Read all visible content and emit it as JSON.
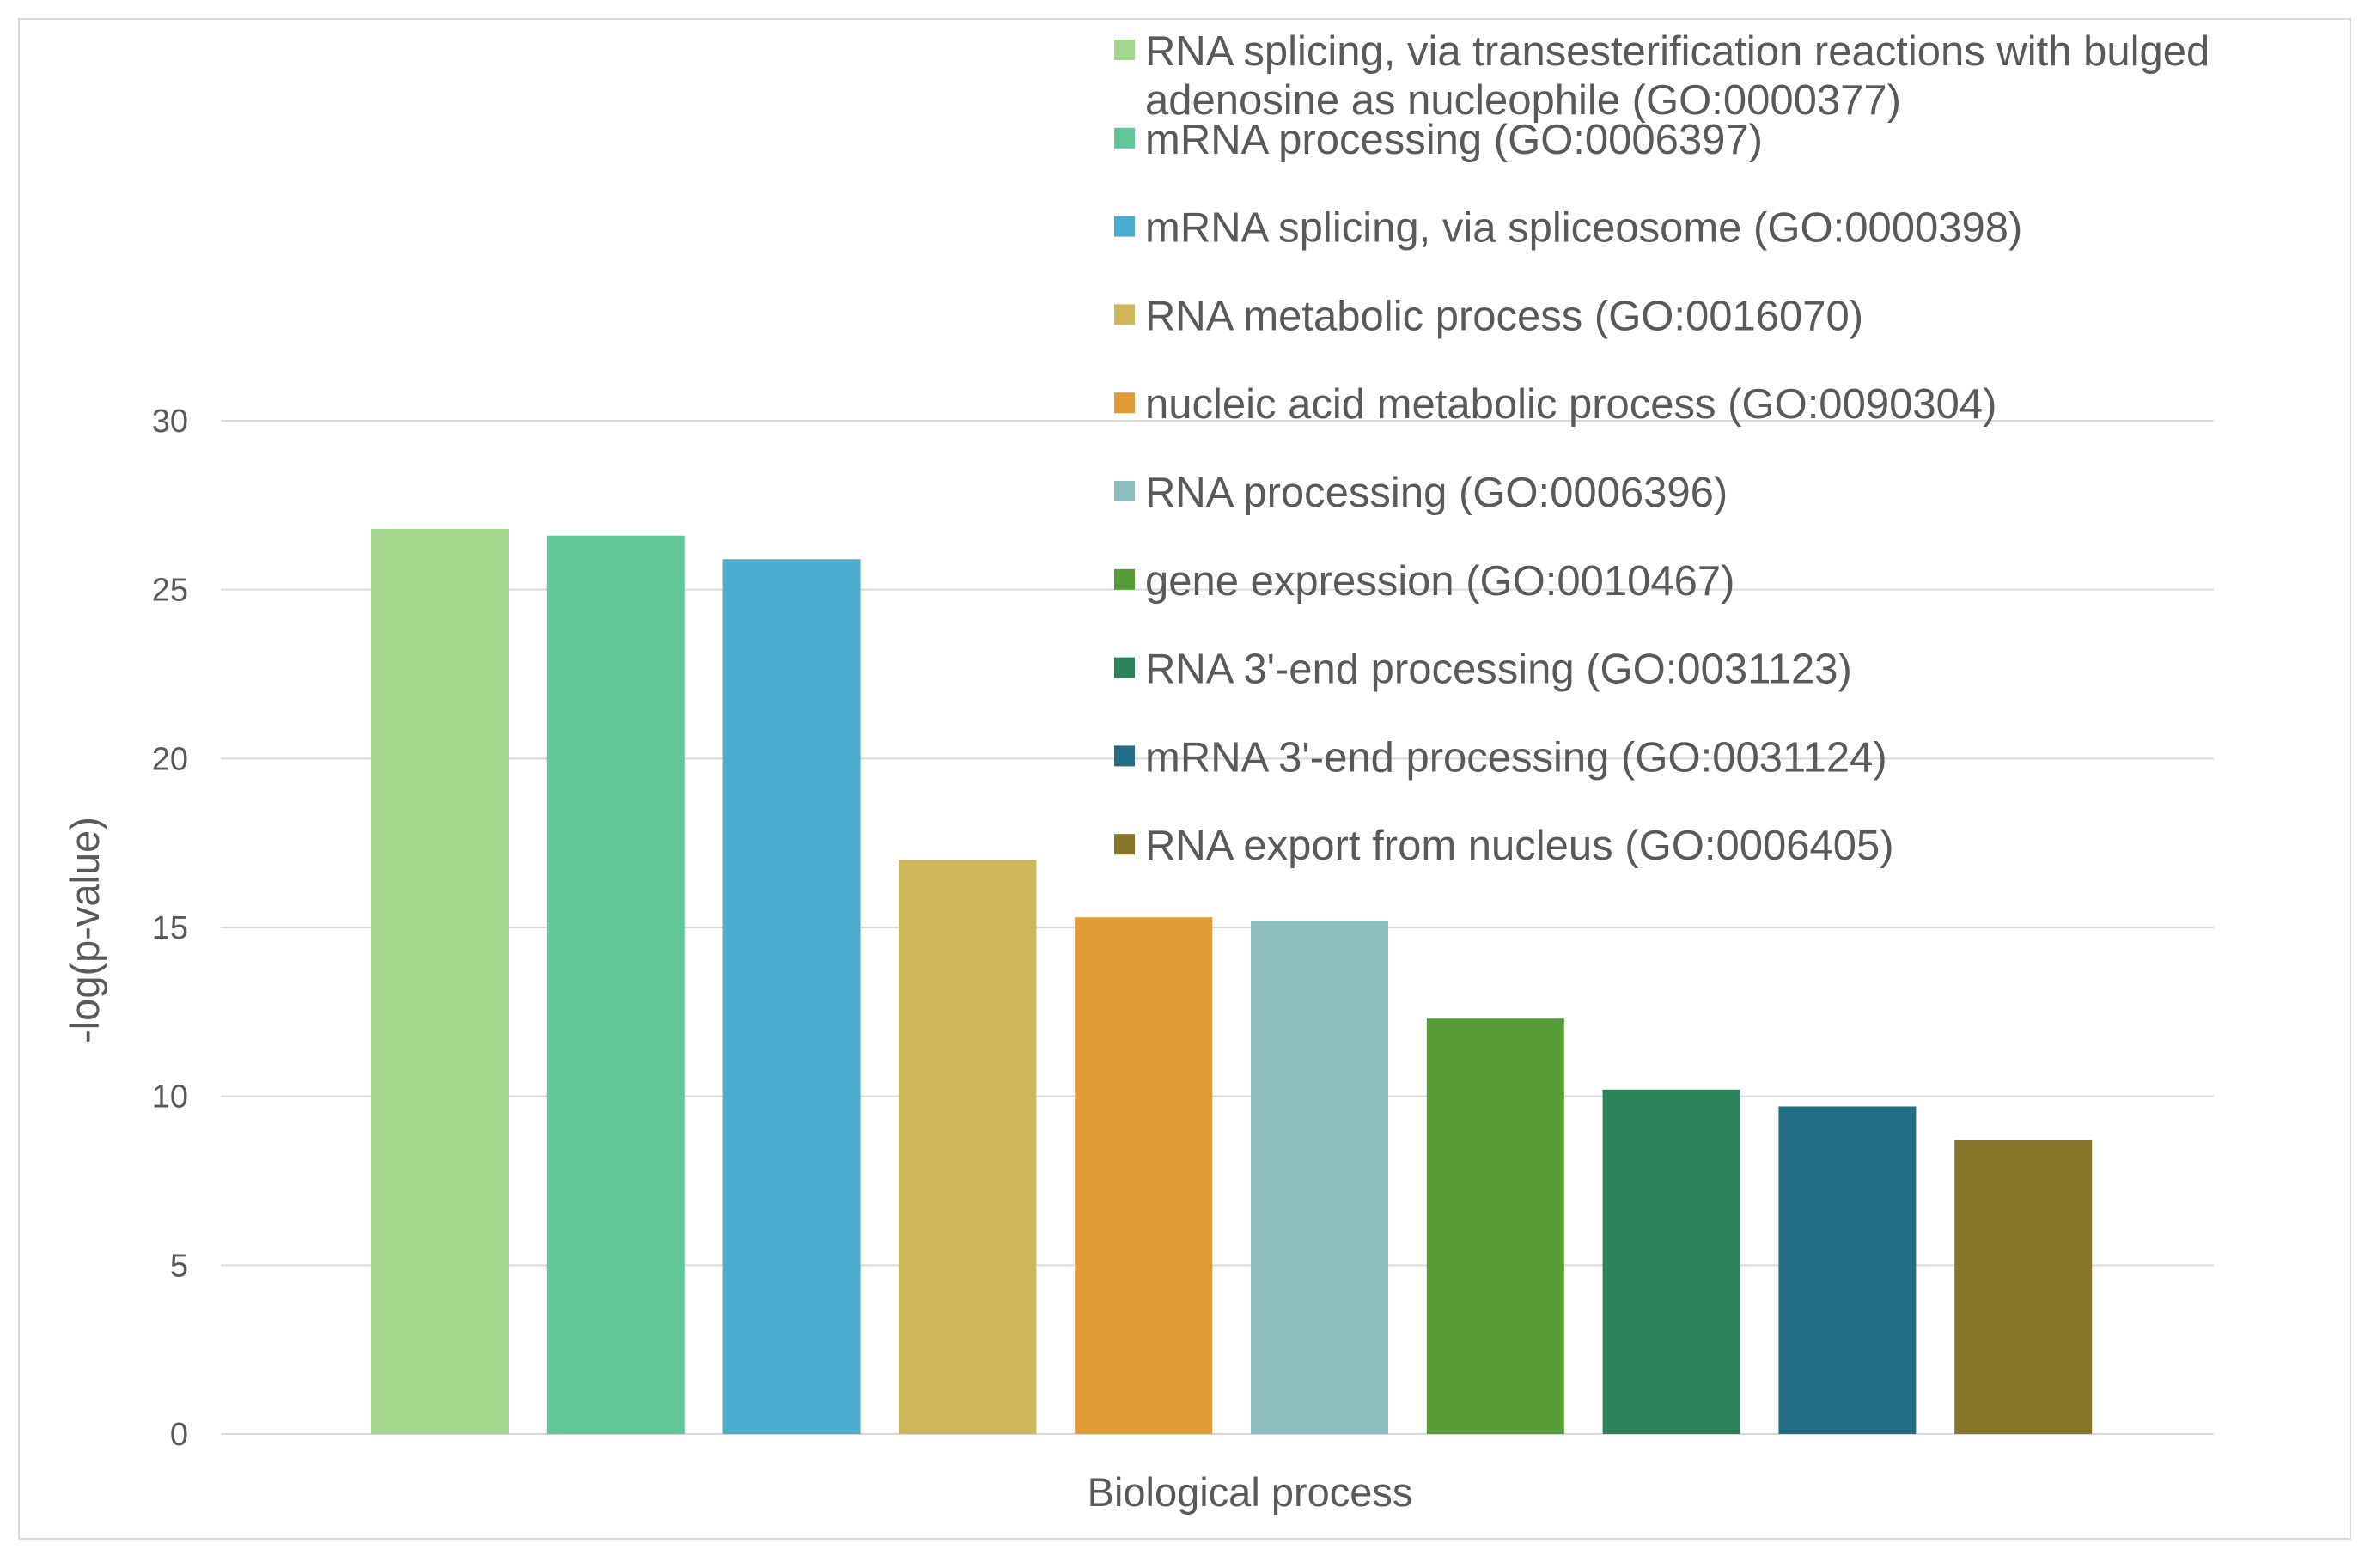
{
  "chart_data": {
    "type": "bar",
    "title": "",
    "xlabel": "Biological process",
    "ylabel": "-log(p-value)",
    "ylim": [
      0,
      30
    ],
    "yticks": [
      0,
      5,
      10,
      15,
      20,
      25,
      30
    ],
    "grid": true,
    "legend_position": "top-right",
    "series": [
      {
        "name": "RNA splicing, via transesterification reactions with bulged adenosine as nucleophile (GO:0000377)",
        "name_lines": [
          "RNA splicing, via transesterification reactions with bulged",
          "adenosine as nucleophile (GO:0000377)"
        ],
        "value": 26.8,
        "color": "#a3d78b"
      },
      {
        "name": "mRNA processing (GO:0006397)",
        "name_lines": [
          "mRNA processing (GO:0006397)"
        ],
        "value": 26.6,
        "color": "#5fc896"
      },
      {
        "name": "mRNA splicing,  via spliceosome (GO:0000398)",
        "name_lines": [
          "mRNA splicing,  via spliceosome (GO:0000398)"
        ],
        "value": 25.9,
        "color": "#4badce"
      },
      {
        "name": "RNA metabolic process (GO:0016070)",
        "name_lines": [
          "RNA metabolic process (GO:0016070)"
        ],
        "value": 17.0,
        "color": "#cfb759"
      },
      {
        "name": "nucleic acid metabolic process (GO:0090304)",
        "name_lines": [
          "nucleic acid metabolic process (GO:0090304)"
        ],
        "value": 15.3,
        "color": "#e09b36"
      },
      {
        "name": "RNA processing (GO:0006396)",
        "name_lines": [
          "RNA processing (GO:0006396)"
        ],
        "value": 15.2,
        "color": "#8ebfc0"
      },
      {
        "name": "gene expression (GO:0010467)",
        "name_lines": [
          "gene expression (GO:0010467)"
        ],
        "value": 12.3,
        "color": "#569d37"
      },
      {
        "name": "RNA 3'-end processing (GO:0031123)",
        "name_lines": [
          "RNA 3'-end processing (GO:0031123)"
        ],
        "value": 10.2,
        "color": "#2c835a"
      },
      {
        "name": "mRNA 3'-end processing (GO:0031124)",
        "name_lines": [
          "mRNA 3'-end processing (GO:0031124)"
        ],
        "value": 9.7,
        "color": "#226d86"
      },
      {
        "name": "RNA export from nucleus (GO:0006405)",
        "name_lines": [
          "RNA export from nucleus (GO:0006405)"
        ],
        "value": 8.7,
        "color": "#877529"
      }
    ]
  }
}
